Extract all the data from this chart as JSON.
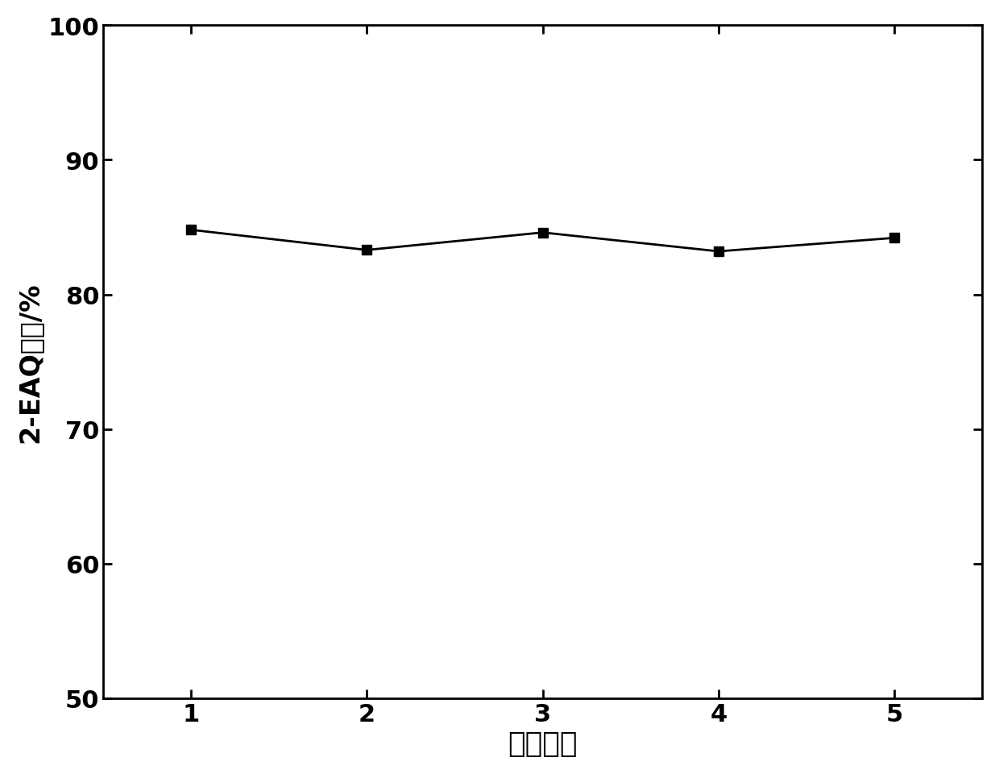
{
  "x": [
    1,
    2,
    3,
    4,
    5
  ],
  "y": [
    84.8,
    83.3,
    84.6,
    83.2,
    84.2
  ],
  "xlabel": "使用次数",
  "ylabel": "2-EAQ收率/%",
  "xlim": [
    0.5,
    5.5
  ],
  "ylim": [
    50,
    100
  ],
  "yticks": [
    50,
    60,
    70,
    80,
    90,
    100
  ],
  "xticks": [
    1,
    2,
    3,
    4,
    5
  ],
  "line_color": "#000000",
  "marker": "s",
  "marker_color": "#000000",
  "marker_size": 9,
  "line_width": 2.0,
  "xlabel_fontsize": 26,
  "ylabel_fontsize": 24,
  "tick_fontsize": 22,
  "background_color": "#ffffff",
  "spine_color": "#000000",
  "spine_linewidth": 2.0
}
